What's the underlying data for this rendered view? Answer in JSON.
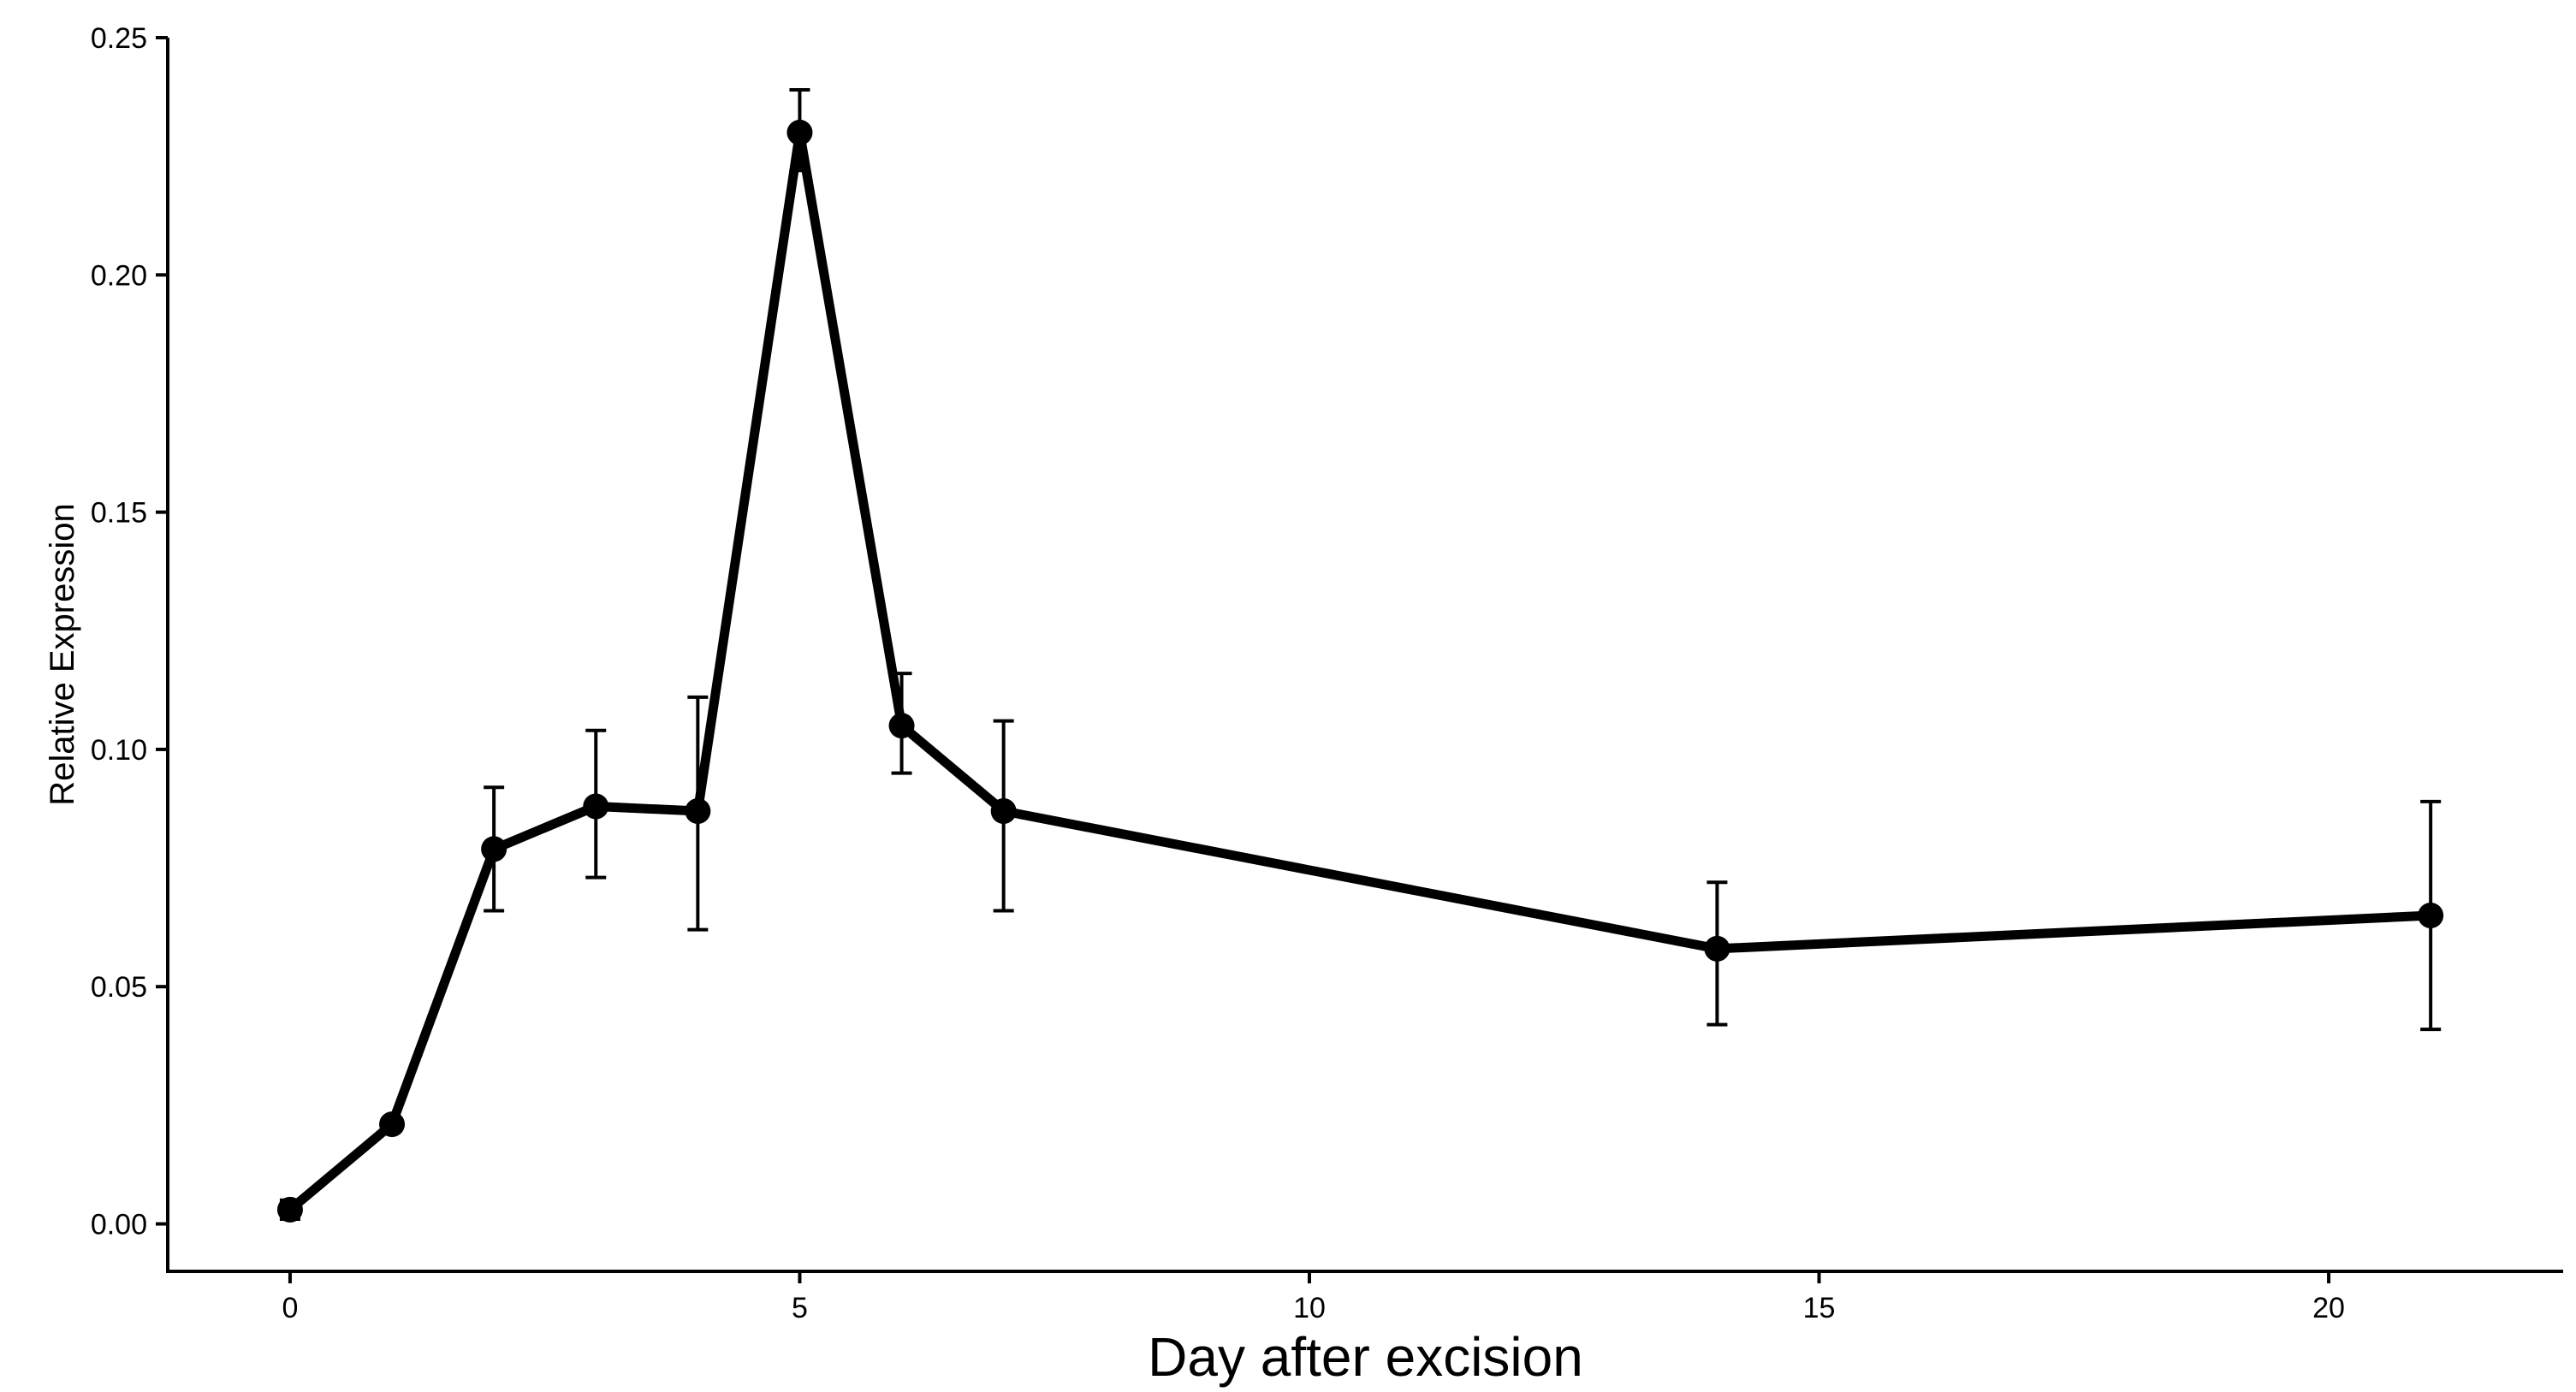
{
  "chart_data": {
    "type": "line",
    "title": "",
    "xlabel": "Day after excision",
    "ylabel": "Relative Expression",
    "xlim": [
      -1.2,
      22.3
    ],
    "ylim": [
      -0.01,
      0.25
    ],
    "xticks": [
      0,
      5,
      10,
      15,
      20
    ],
    "yticks": [
      0.0,
      0.05,
      0.1,
      0.15,
      0.2,
      0.25
    ],
    "ytick_labels": [
      "0.00",
      "0.05",
      "0.10",
      "0.15",
      "0.20",
      "0.25"
    ],
    "xtick_labels": [
      "0",
      "5",
      "10",
      "15",
      "20"
    ],
    "grid": false,
    "series": [
      {
        "name": "Relative Expression",
        "x": [
          0,
          1,
          2,
          3,
          4,
          5,
          6,
          7,
          14,
          21
        ],
        "y": [
          0.003,
          0.021,
          0.079,
          0.088,
          0.087,
          0.23,
          0.105,
          0.087,
          0.058,
          0.065
        ],
        "err_low": [
          0.001,
          0.02,
          0.066,
          0.073,
          0.062,
          0.222,
          0.095,
          0.066,
          0.042,
          0.041
        ],
        "err_high": [
          0.005,
          0.022,
          0.092,
          0.104,
          0.111,
          0.239,
          0.116,
          0.106,
          0.072,
          0.089
        ],
        "color": "#000000"
      }
    ]
  }
}
